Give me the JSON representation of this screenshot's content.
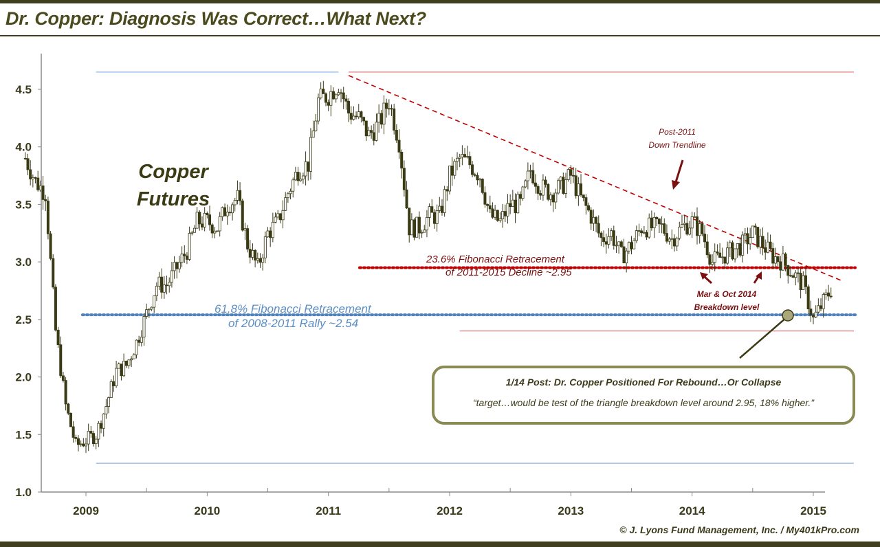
{
  "header": {
    "title": "Dr. Copper: Diagnosis Was Correct…What Next?",
    "copyright": "© J. Lyons Fund Management, Inc. / My401kPro.com"
  },
  "labels": {
    "series_line1": "Copper",
    "series_line2": "Futures",
    "fib236_line1": "23.6% Fibonacci Retracement",
    "fib236_line2": "of 2011-2015 Decline ~2.95",
    "fib618_line1": "61.8% Fibonacci Retracement",
    "fib618_line2": "of 2008-2011 Rally ~2.54",
    "trend_line1": "Post-2011",
    "trend_line2": "Down Trendline",
    "breakdown_line1": "Mar & Oct 2014",
    "breakdown_line2": "Breakdown level"
  },
  "callout": {
    "heading": "1/14 Post: Dr. Copper Positioned For Rebound…Or Collapse",
    "quote": "“target…would be test of the triangle breakdown level around 2.95, 18% higher.”"
  },
  "colors": {
    "candle": "#3a3a14",
    "red": "#c00000",
    "dark_red": "#7a1010",
    "blue": "#4f81bd",
    "light_blue": "#8db3e2",
    "pink": "#e07b7b"
  },
  "chart_data": {
    "type": "line",
    "title": "Dr. Copper: Diagnosis Was Correct…What Next?",
    "series": [
      {
        "name": "Copper Futures",
        "x": [
          "2008-07",
          "2008-08",
          "2008-09",
          "2008-10",
          "2008-11",
          "2008-12",
          "2009-01",
          "2009-02",
          "2009-03",
          "2009-04",
          "2009-05",
          "2009-06",
          "2009-07",
          "2009-08",
          "2009-09",
          "2009-10",
          "2009-11",
          "2009-12",
          "2010-01",
          "2010-02",
          "2010-03",
          "2010-04",
          "2010-05",
          "2010-06",
          "2010-07",
          "2010-08",
          "2010-09",
          "2010-10",
          "2010-11",
          "2010-12",
          "2011-01",
          "2011-02",
          "2011-03",
          "2011-04",
          "2011-05",
          "2011-06",
          "2011-07",
          "2011-08",
          "2011-09",
          "2011-10",
          "2011-11",
          "2011-12",
          "2012-01",
          "2012-02",
          "2012-03",
          "2012-04",
          "2012-05",
          "2012-06",
          "2012-07",
          "2012-08",
          "2012-09",
          "2012-10",
          "2012-11",
          "2012-12",
          "2013-01",
          "2013-02",
          "2013-03",
          "2013-04",
          "2013-05",
          "2013-06",
          "2013-07",
          "2013-08",
          "2013-09",
          "2013-10",
          "2013-11",
          "2013-12",
          "2014-01",
          "2014-02",
          "2014-03",
          "2014-04",
          "2014-05",
          "2014-06",
          "2014-07",
          "2014-08",
          "2014-09",
          "2014-10",
          "2014-11",
          "2014-12",
          "2015-01",
          "2015-02",
          "2015-03"
        ],
        "y": [
          3.9,
          3.7,
          3.6,
          2.4,
          1.75,
          1.4,
          1.45,
          1.5,
          1.75,
          2.05,
          2.1,
          2.3,
          2.55,
          2.8,
          2.8,
          2.95,
          3.1,
          3.35,
          3.35,
          3.3,
          3.5,
          3.55,
          3.15,
          2.95,
          3.25,
          3.35,
          3.6,
          3.8,
          3.85,
          4.4,
          4.45,
          4.55,
          4.3,
          4.25,
          4.1,
          4.2,
          4.4,
          4.05,
          3.3,
          3.3,
          3.4,
          3.4,
          3.75,
          3.9,
          3.85,
          3.75,
          3.4,
          3.35,
          3.5,
          3.5,
          3.8,
          3.65,
          3.6,
          3.65,
          3.75,
          3.55,
          3.4,
          3.2,
          3.25,
          3.05,
          3.15,
          3.3,
          3.3,
          3.3,
          3.2,
          3.3,
          3.35,
          3.25,
          3.0,
          3.05,
          3.1,
          3.15,
          3.25,
          3.15,
          3.05,
          3.0,
          2.9,
          2.8,
          2.5,
          2.65,
          2.8
        ]
      }
    ],
    "xlabel": "",
    "ylabel": "",
    "xlim": [
      "2008-07",
      "2015-07"
    ],
    "ylim": [
      1.0,
      4.75
    ],
    "yticks": [
      "1.0",
      "1.5",
      "2.0",
      "2.5",
      "3.0",
      "3.5",
      "4.0",
      "4.5"
    ],
    "xticks": [
      "2009",
      "2010",
      "2011",
      "2012",
      "2013",
      "2014",
      "2015"
    ],
    "reference_lines": [
      {
        "label": "23.6% Fibonacci Retracement of 2011-2015 Decline ~2.95",
        "value": 2.95,
        "style": "dotted",
        "color": "#c00000"
      },
      {
        "label": "61.8% Fibonacci Retracement of 2008-2011 Rally ~2.54",
        "value": 2.54,
        "style": "dotted",
        "color": "#4f81bd"
      },
      {
        "label": "",
        "value": 4.65,
        "style": "solid",
        "color": "#e07b7b",
        "from": "2011-03",
        "to": "2015-07"
      },
      {
        "label": "",
        "value": 2.4,
        "style": "solid",
        "color": "#e07b7b",
        "from": "2012-02",
        "to": "2015-07"
      },
      {
        "label": "",
        "value": 4.65,
        "style": "solid",
        "color": "#8db3e2",
        "from": "2009-02",
        "to": "2011-02"
      },
      {
        "label": "",
        "value": 1.25,
        "style": "solid",
        "color": "#8db3e2",
        "from": "2009-02",
        "to": "2015-07"
      }
    ],
    "trendline": {
      "label": "Post-2011 Down Trendline",
      "from": [
        "2011-03",
        4.62
      ],
      "to": [
        "2015-04",
        2.83
      ]
    },
    "grid": false,
    "legend": "none"
  }
}
